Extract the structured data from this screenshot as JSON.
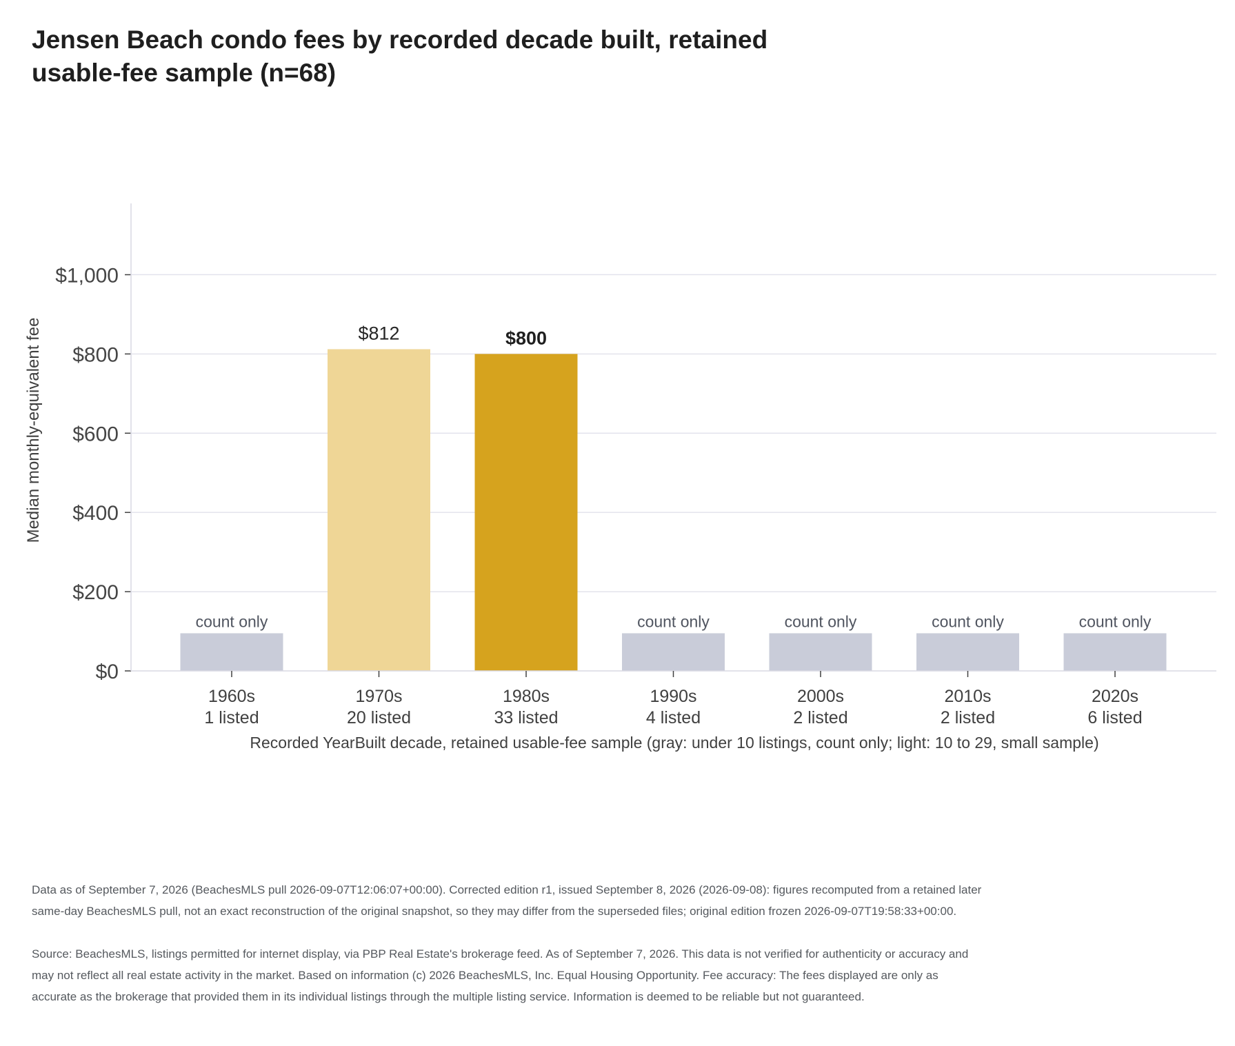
{
  "chart_data": {
    "type": "bar",
    "title": "Jensen Beach condo fees by recorded decade built, retained usable-fee sample (n=68)",
    "ylabel": "Median monthly-equivalent fee",
    "xlabel": "Recorded YearBuilt decade, retained usable-fee sample (gray: under 10 listings, count only; light: 10 to 29, small sample)",
    "ylim": [
      0,
      1180
    ],
    "yticks": [
      0,
      200,
      400,
      600,
      800,
      1000
    ],
    "ytick_labels": [
      "$0",
      "$200",
      "$400",
      "$600",
      "$800",
      "$1,000"
    ],
    "grid": true,
    "count_only_value": 95,
    "categories": [
      "1960s",
      "1970s",
      "1980s",
      "1990s",
      "2000s",
      "2010s",
      "2020s"
    ],
    "counts": [
      "1 listed",
      "20 listed",
      "33 listed",
      "4 listed",
      "2 listed",
      "2 listed",
      "6 listed"
    ],
    "values": [
      null,
      812,
      800,
      null,
      null,
      null,
      null
    ],
    "data_labels": [
      "count only",
      "$812",
      "$800",
      "count only",
      "count only",
      "count only",
      "count only"
    ],
    "groups": [
      "count-only",
      "small-sample",
      "full",
      "count-only",
      "count-only",
      "count-only",
      "count-only"
    ],
    "colors": {
      "count-only": "#c9ccd9",
      "small-sample": "#efd696",
      "full": "#d6a31e",
      "grid": "#e3e3ec",
      "axis": "#d9d9e3",
      "text": "#404040"
    }
  },
  "footnotes": {
    "data_note": "Data as of September 7, 2026 (BeachesMLS pull 2026-09-07T12:06:07+00:00). Corrected edition r1, issued September 8, 2026 (2026-09-08): figures recomputed from a retained later same-day BeachesMLS pull, not an exact reconstruction of the original snapshot, so they may differ from the superseded files; original edition frozen 2026-09-07T19:58:33+00:00.",
    "source": "Source: BeachesMLS, listings permitted for internet display, via PBP Real Estate's brokerage feed. As of September 7, 2026. This data is not verified for authenticity or accuracy and may not reflect all real estate activity in the market. Based on information (c) 2026 BeachesMLS, Inc. Equal Housing Opportunity. Fee accuracy: The fees displayed are only as accurate as the brokerage that provided them in its individual listings through the multiple listing service. Information is deemed to be reliable but not guaranteed."
  }
}
